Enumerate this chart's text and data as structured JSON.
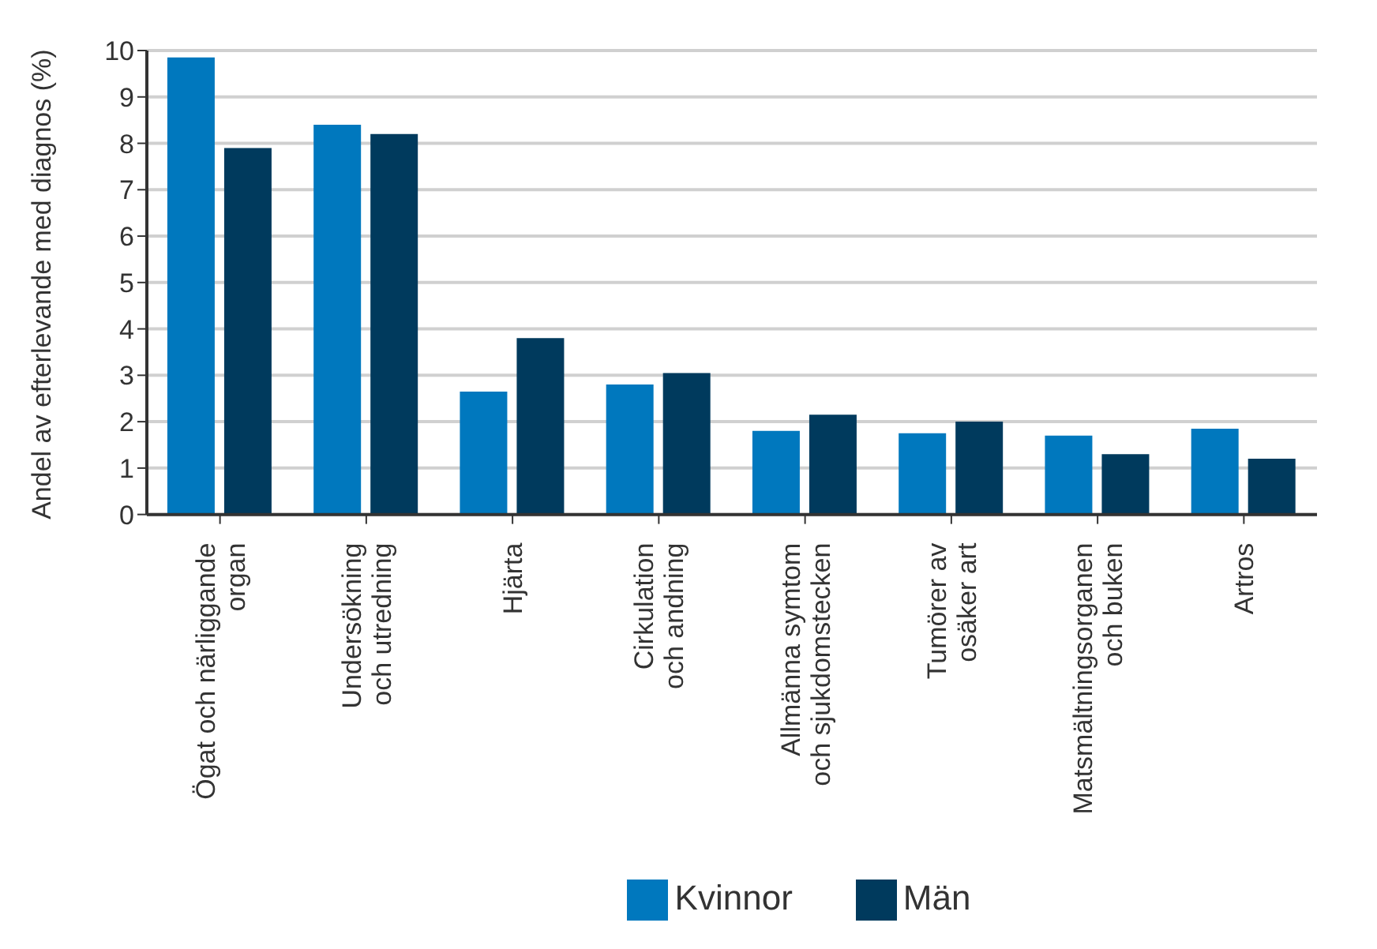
{
  "chart_data": {
    "type": "bar",
    "ylabel": "Andel av efterlevande med diagnos (%)",
    "categories": [
      "Ögat och närliggande\norgan",
      "Undersökning\noch utredning",
      "Hjärta",
      "Cirkulation\noch andning",
      "Allmänna symtom\noch sjukdomstecken",
      "Tumörer av\nosäker art",
      "Matsmältningsorganen\noch buken",
      "Artros"
    ],
    "series": [
      {
        "name": "Kvinnor",
        "color": "#0078be",
        "values": [
          9.85,
          8.4,
          2.65,
          2.8,
          1.8,
          1.75,
          1.7,
          1.85
        ]
      },
      {
        "name": "Män",
        "color": "#003a5d",
        "values": [
          7.9,
          8.2,
          3.8,
          3.05,
          2.15,
          2.0,
          1.3,
          1.2
        ]
      }
    ],
    "ylim": [
      0,
      10
    ],
    "yticks": [
      0,
      1,
      2,
      3,
      4,
      5,
      6,
      7,
      8,
      9,
      10
    ],
    "grid": "y",
    "legend": "bottom"
  }
}
